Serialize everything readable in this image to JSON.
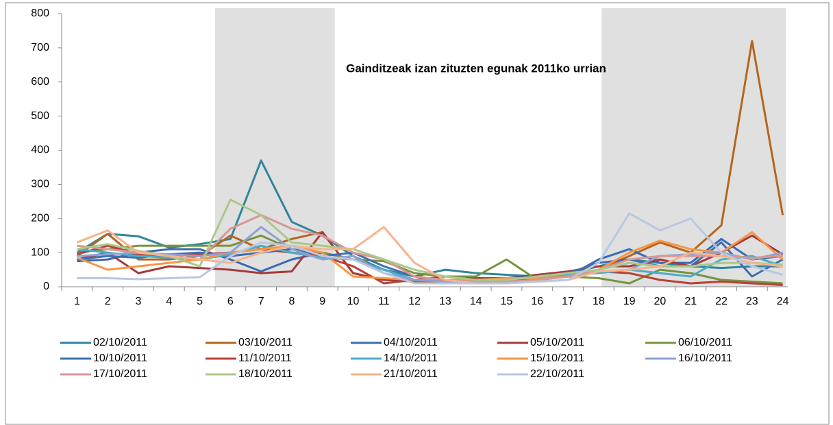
{
  "chart_data": {
    "type": "line",
    "title": "Gainditzeak izan zituzten egunak 2011ko urrian",
    "categories": [
      "1",
      "2",
      "3",
      "4",
      "5",
      "6",
      "7",
      "8",
      "9",
      "10",
      "11",
      "12",
      "13",
      "14",
      "15",
      "16",
      "17",
      "18",
      "19",
      "20",
      "21",
      "22",
      "23",
      "24"
    ],
    "ylim": [
      0,
      800
    ],
    "yticks": [
      0,
      100,
      200,
      300,
      400,
      500,
      600,
      700,
      800
    ],
    "shaded": [
      [
        5.5,
        9.4
      ],
      [
        18.1,
        24.1
      ]
    ],
    "series": [
      {
        "name": "02/10/2011",
        "color": "#31859c",
        "values": [
          100,
          155,
          148,
          115,
          125,
          140,
          370,
          190,
          150,
          90,
          50,
          30,
          50,
          40,
          35,
          30,
          40,
          60,
          80,
          70,
          60,
          55,
          60,
          60
        ]
      },
      {
        "name": "03/10/2011",
        "color": "#b5651d",
        "values": [
          90,
          155,
          80,
          80,
          90,
          150,
          110,
          140,
          160,
          40,
          20,
          15,
          15,
          10,
          15,
          20,
          30,
          50,
          90,
          130,
          100,
          180,
          720,
          210
        ]
      },
      {
        "name": "04/10/2011",
        "color": "#3a6ab0",
        "values": [
          75,
          80,
          100,
          110,
          110,
          80,
          45,
          80,
          100,
          80,
          50,
          20,
          15,
          20,
          25,
          20,
          30,
          80,
          110,
          70,
          70,
          140,
          80,
          90
        ]
      },
      {
        "name": "05/10/2011",
        "color": "#a33b3b",
        "values": [
          80,
          100,
          40,
          60,
          55,
          50,
          40,
          45,
          160,
          40,
          20,
          20,
          30,
          25,
          25,
          35,
          45,
          60,
          60,
          80,
          60,
          100,
          150,
          95
        ]
      },
      {
        "name": "06/10/2011",
        "color": "#77933c",
        "values": [
          100,
          110,
          120,
          120,
          120,
          120,
          150,
          110,
          100,
          80,
          75,
          40,
          30,
          30,
          80,
          20,
          30,
          25,
          10,
          50,
          40,
          20,
          15,
          10
        ]
      },
      {
        "name": "10/10/2011",
        "color": "#3e6fb0",
        "values": [
          80,
          90,
          85,
          95,
          100,
          90,
          100,
          110,
          90,
          100,
          60,
          30,
          20,
          20,
          25,
          30,
          40,
          70,
          80,
          60,
          60,
          130,
          30,
          80
        ]
      },
      {
        "name": "11/10/2011",
        "color": "#b8403a",
        "values": [
          95,
          120,
          95,
          90,
          95,
          100,
          110,
          100,
          90,
          60,
          10,
          20,
          20,
          15,
          15,
          25,
          30,
          45,
          40,
          20,
          10,
          15,
          10,
          5
        ]
      },
      {
        "name": "14/10/2011",
        "color": "#4bacc6",
        "values": [
          110,
          100,
          90,
          85,
          80,
          95,
          120,
          100,
          85,
          80,
          50,
          20,
          15,
          15,
          20,
          30,
          35,
          40,
          50,
          40,
          30,
          80,
          90,
          60
        ]
      },
      {
        "name": "15/10/2011",
        "color": "#f79646",
        "values": [
          85,
          50,
          60,
          70,
          80,
          100,
          110,
          120,
          100,
          30,
          25,
          20,
          20,
          20,
          25,
          25,
          30,
          50,
          100,
          135,
          110,
          100,
          160,
          80
        ]
      },
      {
        "name": "16/10/2011",
        "color": "#8ea0d2",
        "values": [
          90,
          95,
          100,
          95,
          90,
          100,
          175,
          110,
          80,
          90,
          40,
          20,
          15,
          15,
          15,
          20,
          30,
          45,
          50,
          90,
          95,
          100,
          80,
          100
        ]
      },
      {
        "name": "17/10/2011",
        "color": "#d99694",
        "values": [
          120,
          110,
          100,
          90,
          80,
          170,
          210,
          170,
          150,
          100,
          80,
          30,
          20,
          15,
          15,
          20,
          30,
          50,
          80,
          90,
          90,
          90,
          85,
          90
        ]
      },
      {
        "name": "18/10/2011",
        "color": "#a9c98a",
        "values": [
          110,
          125,
          105,
          90,
          60,
          255,
          210,
          130,
          120,
          110,
          80,
          50,
          30,
          20,
          20,
          30,
          40,
          50,
          70,
          60,
          60,
          70,
          70,
          65
        ]
      },
      {
        "name": "21/10/2011",
        "color": "#f7b489",
        "values": [
          130,
          165,
          100,
          90,
          80,
          70,
          100,
          120,
          110,
          110,
          175,
          70,
          20,
          10,
          10,
          15,
          20,
          45,
          50,
          60,
          100,
          90,
          70,
          60
        ]
      },
      {
        "name": "22/10/2011",
        "color": "#b9c7e0",
        "values": [
          25,
          25,
          22,
          25,
          28,
          90,
          130,
          120,
          90,
          80,
          40,
          10,
          10,
          10,
          10,
          15,
          20,
          70,
          215,
          165,
          200,
          100,
          60,
          35
        ]
      }
    ]
  }
}
